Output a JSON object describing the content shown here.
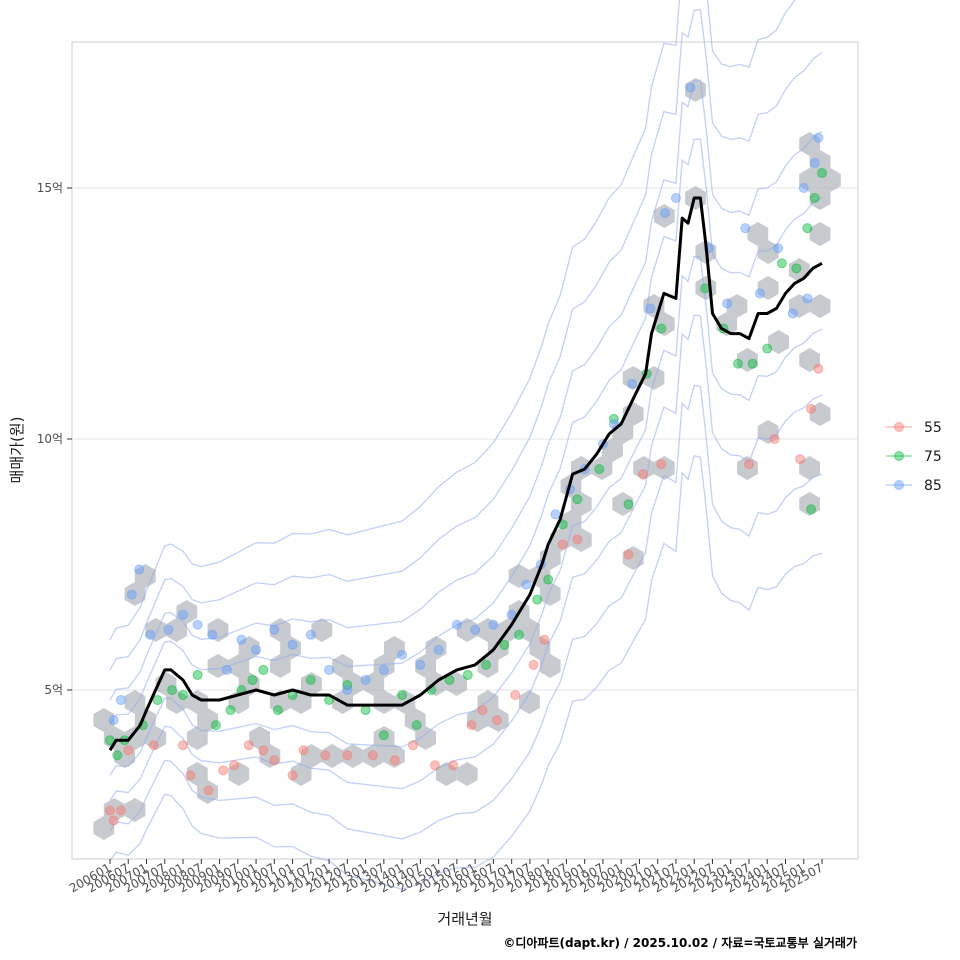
{
  "chart_data": {
    "type": "scatter",
    "title": "",
    "xlabel": "거래년월",
    "ylabel": "매매가(원)",
    "caption": "©디아파트(dapt.kr) / 2025.10.02 / 자료=국토교통부 실거래가",
    "x_ticks": [
      "200601",
      "200607",
      "200701",
      "200707",
      "200801",
      "200807",
      "200901",
      "200907",
      "201001",
      "201007",
      "201101",
      "201107",
      "201201",
      "201207",
      "201301",
      "201307",
      "201401",
      "201407",
      "201501",
      "201507",
      "201601",
      "201607",
      "201701",
      "201707",
      "201801",
      "201807",
      "201901",
      "201907",
      "202001",
      "202007",
      "202101",
      "202107",
      "202201",
      "202207",
      "202301",
      "202307",
      "202401",
      "202407",
      "202501",
      "202507"
    ],
    "y_ticks": [
      {
        "label": "5억",
        "value": 5.0
      },
      {
        "label": "10억",
        "value": 10.0
      },
      {
        "label": "15억",
        "value": 15.0
      }
    ],
    "ylim": [
      1.7,
      18.0
    ],
    "grid": true,
    "legend_position": "right",
    "colors": {
      "55": "#F8766D",
      "75": "#00BA38",
      "85": "#619CFF",
      "trend": "#000000",
      "hex": "#a9aeb3",
      "contour": "#8faaf0",
      "panel_border": "#cccccc",
      "grid": "#e6e6e6"
    },
    "series": [
      {
        "name": "55",
        "points": [
          [
            2006.0,
            2.6
          ],
          [
            2006.1,
            2.4
          ],
          [
            2006.3,
            2.6
          ],
          [
            2006.5,
            3.8
          ],
          [
            2007.2,
            3.9
          ],
          [
            2008.0,
            3.9
          ],
          [
            2008.2,
            3.3
          ],
          [
            2008.7,
            3.0
          ],
          [
            2009.1,
            3.4
          ],
          [
            2009.4,
            3.5
          ],
          [
            2009.8,
            3.9
          ],
          [
            2010.2,
            3.8
          ],
          [
            2010.5,
            3.6
          ],
          [
            2011.0,
            3.3
          ],
          [
            2011.3,
            3.8
          ],
          [
            2011.9,
            3.7
          ],
          [
            2012.5,
            3.7
          ],
          [
            2013.2,
            3.7
          ],
          [
            2013.8,
            3.6
          ],
          [
            2014.3,
            3.9
          ],
          [
            2014.9,
            3.5
          ],
          [
            2015.4,
            3.5
          ],
          [
            2015.9,
            4.3
          ],
          [
            2016.2,
            4.6
          ],
          [
            2016.6,
            4.4
          ],
          [
            2017.1,
            4.9
          ],
          [
            2017.6,
            5.5
          ],
          [
            2017.9,
            6.0
          ],
          [
            2018.4,
            7.9
          ],
          [
            2018.8,
            8.0
          ],
          [
            2020.2,
            7.7
          ],
          [
            2020.6,
            9.3
          ],
          [
            2021.1,
            9.5
          ],
          [
            2023.5,
            9.5
          ],
          [
            2024.2,
            10.0
          ],
          [
            2024.9,
            9.6
          ],
          [
            2025.2,
            10.6
          ],
          [
            2025.4,
            11.4
          ]
        ]
      },
      {
        "name": "75",
        "points": [
          [
            2006.0,
            4.0
          ],
          [
            2006.2,
            3.7
          ],
          [
            2006.4,
            4.0
          ],
          [
            2006.9,
            4.3
          ],
          [
            2007.3,
            4.8
          ],
          [
            2007.7,
            5.0
          ],
          [
            2008.0,
            4.9
          ],
          [
            2008.4,
            5.3
          ],
          [
            2008.9,
            4.3
          ],
          [
            2009.3,
            4.6
          ],
          [
            2009.6,
            5.0
          ],
          [
            2009.9,
            5.2
          ],
          [
            2010.2,
            5.4
          ],
          [
            2010.6,
            4.6
          ],
          [
            2011.0,
            4.9
          ],
          [
            2011.5,
            5.2
          ],
          [
            2012.0,
            4.8
          ],
          [
            2012.5,
            5.1
          ],
          [
            2013.0,
            4.6
          ],
          [
            2013.5,
            4.1
          ],
          [
            2014.0,
            4.9
          ],
          [
            2014.4,
            4.3
          ],
          [
            2014.8,
            5.0
          ],
          [
            2015.3,
            5.2
          ],
          [
            2015.8,
            5.3
          ],
          [
            2016.3,
            5.5
          ],
          [
            2016.8,
            5.9
          ],
          [
            2017.2,
            6.1
          ],
          [
            2017.7,
            6.8
          ],
          [
            2018.0,
            7.2
          ],
          [
            2018.4,
            8.3
          ],
          [
            2018.8,
            8.8
          ],
          [
            2019.4,
            9.4
          ],
          [
            2019.8,
            10.4
          ],
          [
            2020.2,
            8.7
          ],
          [
            2020.7,
            11.3
          ],
          [
            2021.1,
            12.2
          ],
          [
            2022.3,
            13.0
          ],
          [
            2022.8,
            12.2
          ],
          [
            2023.2,
            11.5
          ],
          [
            2023.6,
            11.5
          ],
          [
            2024.0,
            11.8
          ],
          [
            2024.4,
            13.5
          ],
          [
            2024.8,
            13.4
          ],
          [
            2025.1,
            14.2
          ],
          [
            2025.3,
            14.8
          ],
          [
            2025.5,
            15.3
          ],
          [
            2025.2,
            8.6
          ]
        ]
      },
      {
        "name": "85",
        "points": [
          [
            2006.1,
            4.4
          ],
          [
            2006.3,
            4.8
          ],
          [
            2006.6,
            6.9
          ],
          [
            2006.8,
            7.4
          ],
          [
            2007.1,
            6.1
          ],
          [
            2007.6,
            6.2
          ],
          [
            2008.0,
            6.5
          ],
          [
            2008.4,
            6.3
          ],
          [
            2008.8,
            6.1
          ],
          [
            2009.2,
            5.4
          ],
          [
            2009.6,
            6.0
          ],
          [
            2010.0,
            5.8
          ],
          [
            2010.5,
            6.2
          ],
          [
            2011.0,
            5.9
          ],
          [
            2011.5,
            6.1
          ],
          [
            2012.0,
            5.4
          ],
          [
            2012.5,
            5.0
          ],
          [
            2013.0,
            5.2
          ],
          [
            2013.5,
            5.4
          ],
          [
            2014.0,
            5.7
          ],
          [
            2014.5,
            5.5
          ],
          [
            2015.0,
            5.8
          ],
          [
            2015.5,
            6.3
          ],
          [
            2016.0,
            6.2
          ],
          [
            2016.5,
            6.3
          ],
          [
            2017.0,
            6.5
          ],
          [
            2017.4,
            7.1
          ],
          [
            2017.8,
            7.5
          ],
          [
            2018.2,
            8.5
          ],
          [
            2018.6,
            9.0
          ],
          [
            2019.0,
            9.4
          ],
          [
            2019.5,
            9.9
          ],
          [
            2019.8,
            10.3
          ],
          [
            2020.3,
            11.1
          ],
          [
            2020.8,
            12.6
          ],
          [
            2021.2,
            14.5
          ],
          [
            2021.5,
            14.8
          ],
          [
            2021.9,
            17.0
          ],
          [
            2022.4,
            13.8
          ],
          [
            2022.9,
            12.7
          ],
          [
            2023.4,
            14.2
          ],
          [
            2023.8,
            12.9
          ],
          [
            2024.3,
            13.8
          ],
          [
            2024.7,
            12.5
          ],
          [
            2025.0,
            15.0
          ],
          [
            2025.3,
            15.5
          ],
          [
            2025.4,
            16.0
          ],
          [
            2025.1,
            12.8
          ]
        ]
      }
    ],
    "trend": {
      "name": "",
      "x": [
        2006.0,
        2006.17,
        2006.5,
        2006.83,
        2007.0,
        2007.25,
        2007.5,
        2007.67,
        2007.83,
        2008.0,
        2008.25,
        2008.5,
        2009.0,
        2009.5,
        2010.0,
        2010.5,
        2011.0,
        2011.5,
        2012.0,
        2012.5,
        2013.0,
        2013.5,
        2014.0,
        2014.5,
        2015.0,
        2015.5,
        2016.0,
        2016.5,
        2017.0,
        2017.5,
        2017.83,
        2018.0,
        2018.33,
        2018.67,
        2019.0,
        2019.33,
        2019.67,
        2020.0,
        2020.33,
        2020.67,
        2020.83,
        2021.0,
        2021.17,
        2021.5,
        2021.67,
        2021.83,
        2022.0,
        2022.17,
        2022.33,
        2022.5,
        2022.75,
        2023.0,
        2023.25,
        2023.5,
        2023.75,
        2024.0,
        2024.25,
        2024.5,
        2024.75,
        2025.0,
        2025.25,
        2025.5
      ],
      "y": [
        3.8,
        4.0,
        4.0,
        4.3,
        4.6,
        5.0,
        5.4,
        5.4,
        5.3,
        5.2,
        4.9,
        4.8,
        4.8,
        4.9,
        5.0,
        4.9,
        5.0,
        4.9,
        4.9,
        4.7,
        4.7,
        4.7,
        4.7,
        4.9,
        5.2,
        5.4,
        5.5,
        5.8,
        6.3,
        6.9,
        7.5,
        7.9,
        8.4,
        9.3,
        9.4,
        9.7,
        10.1,
        10.3,
        10.8,
        11.3,
        12.1,
        12.5,
        12.9,
        12.8,
        14.4,
        14.3,
        14.8,
        14.8,
        13.8,
        12.5,
        12.2,
        12.1,
        12.1,
        12.0,
        12.5,
        12.5,
        12.6,
        12.9,
        13.1,
        13.2,
        13.4,
        13.5
      ]
    },
    "legend": [
      {
        "label": "55",
        "color": "#F8766D"
      },
      {
        "label": "75",
        "color": "#00BA38"
      },
      {
        "label": "85",
        "color": "#619CFF"
      }
    ]
  }
}
